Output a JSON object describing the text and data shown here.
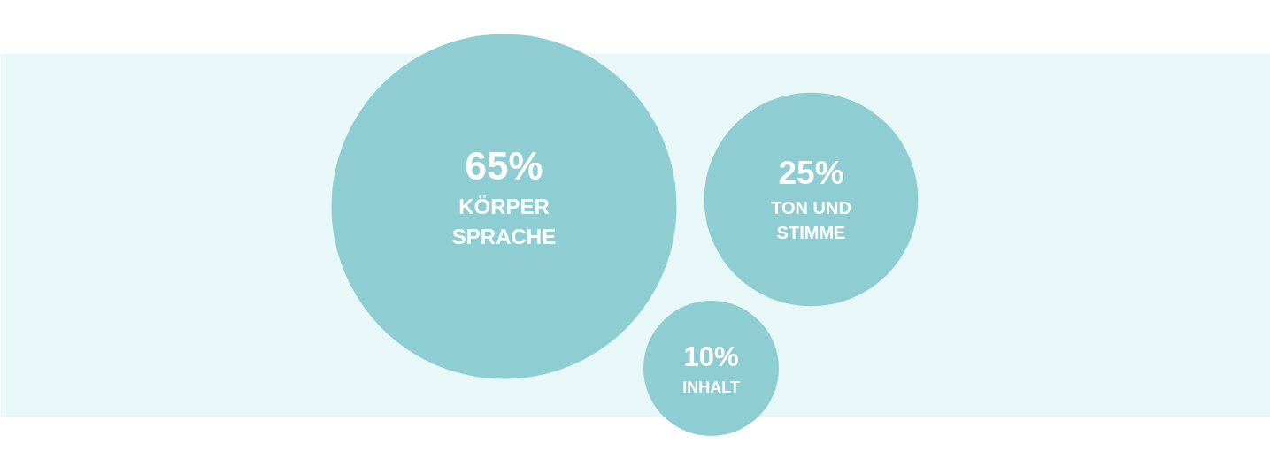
{
  "chart_data": {
    "type": "other",
    "categories": [
      "KÖRPER\nSPRACHE",
      "TON UND\nSTIMME",
      "INHALT"
    ],
    "values": [
      65,
      25,
      10
    ],
    "value_labels": [
      "65%",
      "25%",
      "10%"
    ],
    "colors": [
      "#8ecdd2",
      "#8ecdd2",
      "#8ecdd2"
    ]
  }
}
